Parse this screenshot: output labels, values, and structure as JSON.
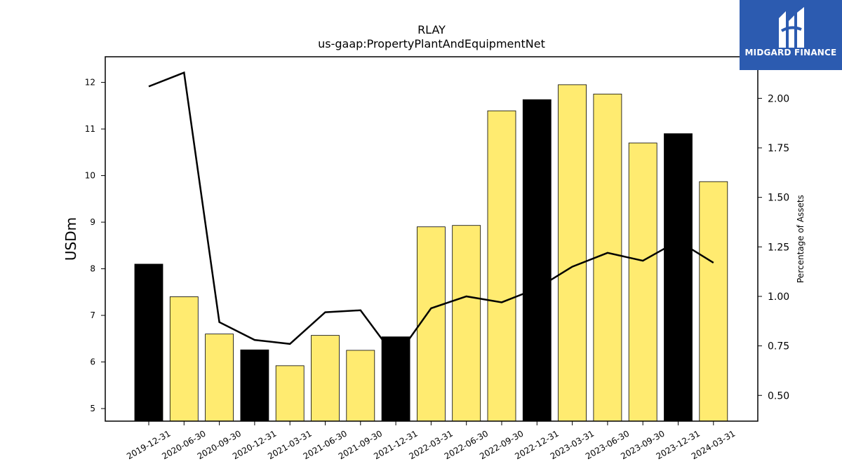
{
  "chart_data": {
    "type": "bar",
    "title": "RLAY",
    "subtitle": "us-gaap:PropertyPlantAndEquipmentNet",
    "ylabel": "USDm",
    "ylabel_right": "Percentage of Assets",
    "categories": [
      "2019-12-31",
      "2020-06-30",
      "2020-09-30",
      "2020-12-31",
      "2021-03-31",
      "2021-06-30",
      "2021-09-30",
      "2021-12-31",
      "2022-03-31",
      "2022-06-30",
      "2022-09-30",
      "2022-12-31",
      "2023-03-31",
      "2023-06-30",
      "2023-09-30",
      "2023-12-31",
      "2024-03-31"
    ],
    "values": [
      8.1,
      7.4,
      6.6,
      6.26,
      5.92,
      6.57,
      6.25,
      6.54,
      8.9,
      8.93,
      11.39,
      11.63,
      11.95,
      11.75,
      10.7,
      10.9,
      9.87
    ],
    "bar_colors": [
      "#000000",
      "#ffeb70",
      "#ffeb70",
      "#000000",
      "#ffeb70",
      "#ffeb70",
      "#ffeb70",
      "#000000",
      "#ffeb70",
      "#ffeb70",
      "#ffeb70",
      "#000000",
      "#ffeb70",
      "#ffeb70",
      "#ffeb70",
      "#000000",
      "#ffeb70"
    ],
    "line_series": {
      "values": [
        2.06,
        2.13,
        0.87,
        0.78,
        0.76,
        0.92,
        0.93,
        0.69,
        0.94,
        1.0,
        0.97,
        1.04,
        1.15,
        1.22,
        1.18,
        1.28,
        1.17
      ],
      "color": "#000000"
    },
    "ylim": [
      4.73,
      12.55
    ],
    "yticks": [
      5,
      6,
      7,
      8,
      9,
      10,
      11,
      12
    ],
    "ylim_right": [
      0.37,
      2.21
    ],
    "yticks_right": [
      "0.50",
      "0.75",
      "1.00",
      "1.25",
      "1.50",
      "1.75",
      "2.00"
    ],
    "grid": false
  },
  "logo": {
    "text": "MIDGARD FINANCE",
    "color": "#2c5bb0"
  }
}
